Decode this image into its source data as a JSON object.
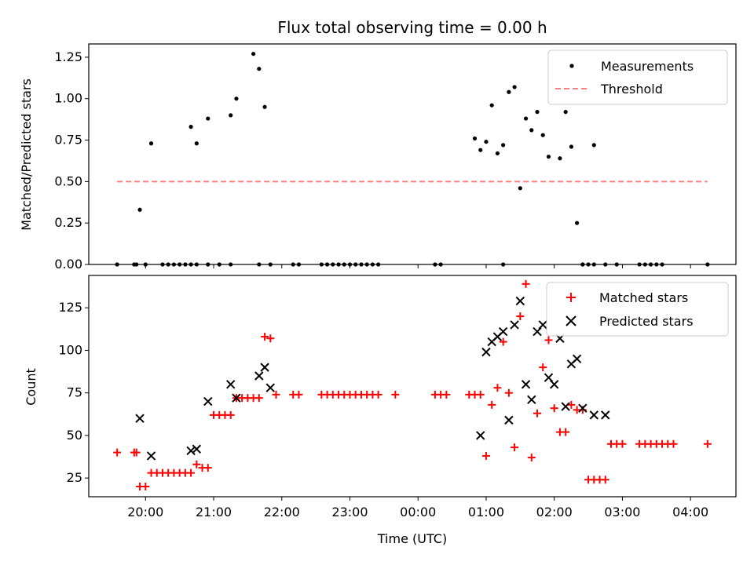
{
  "chart_data": [
    {
      "type": "scatter",
      "title": "Flux total observing time = 0.00 h",
      "xlabel": "",
      "ylabel": "Matched/Predicted stars",
      "xlim": [
        "19:10",
        "04:40"
      ],
      "ylim": [
        0,
        1.33
      ],
      "yticks": [
        "0.00",
        "0.25",
        "0.50",
        "0.75",
        "1.00",
        "1.25"
      ],
      "grid": false,
      "legend_position": "top-right",
      "series": [
        {
          "name": "Measurements",
          "marker": "dot",
          "color": "#000000",
          "x": [
            "19:35",
            "19:50",
            "19:52",
            "20:00",
            "20:15",
            "20:20",
            "20:25",
            "20:30",
            "20:35",
            "20:40",
            "20:45",
            "20:55",
            "21:05",
            "21:15",
            "21:40",
            "21:50",
            "22:10",
            "22:15",
            "22:35",
            "22:40",
            "22:45",
            "22:50",
            "22:55",
            "23:00",
            "23:05",
            "23:10",
            "23:15",
            "23:20",
            "23:25",
            "00:15",
            "00:20",
            "01:15",
            "02:25",
            "02:30",
            "02:35",
            "02:45",
            "02:55",
            "03:15",
            "03:20",
            "03:25",
            "03:30",
            "03:35",
            "04:15",
            "19:55",
            "20:05",
            "20:40",
            "20:45",
            "20:55",
            "21:15",
            "21:20",
            "21:35",
            "21:40",
            "21:45",
            "00:50",
            "00:55",
            "01:00",
            "01:05",
            "01:10",
            "01:15",
            "01:20",
            "01:25",
            "01:30",
            "01:35",
            "01:40",
            "01:45",
            "01:50",
            "01:55",
            "02:05",
            "02:10",
            "02:15",
            "02:20",
            "02:25",
            "02:35"
          ],
          "y": [
            0,
            0,
            0,
            0,
            0,
            0,
            0,
            0,
            0,
            0,
            0,
            0,
            0,
            0,
            0,
            0,
            0,
            0,
            0,
            0,
            0,
            0,
            0,
            0,
            0,
            0,
            0,
            0,
            0,
            0,
            0,
            0,
            0,
            0,
            0,
            0,
            0,
            0,
            0,
            0,
            0,
            0,
            0,
            0.33,
            0.73,
            0.83,
            0.73,
            0.88,
            0.9,
            1.0,
            1.27,
            1.18,
            0.95,
            0.76,
            0.69,
            0.74,
            0.96,
            0.67,
            0.72,
            1.04,
            1.07,
            0.46,
            0.88,
            0.81,
            0.92,
            0.78,
            0.65,
            0.64,
            0.92,
            0.71,
            0.25,
            0,
            0.72
          ]
        },
        {
          "name": "Threshold",
          "marker": "dashed-line",
          "color": "#ff8080",
          "x": [
            "19:35",
            "04:15"
          ],
          "y": [
            0.5,
            0.5
          ]
        }
      ]
    },
    {
      "type": "scatter",
      "title": "",
      "xlabel": "Time (UTC)",
      "ylabel": "Count",
      "xlim": [
        "19:10",
        "04:40"
      ],
      "xticks": [
        "20:00",
        "21:00",
        "22:00",
        "23:00",
        "00:00",
        "01:00",
        "02:00",
        "03:00",
        "04:00"
      ],
      "ylim": [
        14,
        144
      ],
      "yticks": [
        "25",
        "50",
        "75",
        "100",
        "125"
      ],
      "grid": false,
      "legend_position": "top-right",
      "series": [
        {
          "name": "Matched stars",
          "marker": "plus",
          "color": "#ff0000",
          "x": [
            "19:35",
            "19:50",
            "19:52",
            "19:55",
            "20:00",
            "20:05",
            "20:10",
            "20:15",
            "20:20",
            "20:25",
            "20:30",
            "20:35",
            "20:40",
            "20:45",
            "20:50",
            "20:55",
            "21:00",
            "21:05",
            "21:10",
            "21:15",
            "21:20",
            "21:25",
            "21:30",
            "21:35",
            "21:40",
            "21:45",
            "21:50",
            "21:55",
            "22:10",
            "22:15",
            "22:35",
            "22:40",
            "22:45",
            "22:50",
            "22:55",
            "23:00",
            "23:05",
            "23:10",
            "23:15",
            "23:20",
            "23:25",
            "23:40",
            "00:15",
            "00:20",
            "00:25",
            "00:45",
            "00:50",
            "00:55",
            "01:00",
            "01:05",
            "01:10",
            "01:15",
            "01:20",
            "01:25",
            "01:30",
            "01:35",
            "01:40",
            "01:45",
            "01:50",
            "01:55",
            "02:00",
            "02:05",
            "02:10",
            "02:15",
            "02:20",
            "02:25",
            "02:30",
            "02:35",
            "02:40",
            "02:45",
            "02:50",
            "02:55",
            "03:00",
            "03:15",
            "03:20",
            "03:25",
            "03:30",
            "03:35",
            "03:40",
            "03:45",
            "04:15"
          ],
          "y": [
            40,
            40,
            40,
            20,
            20,
            28,
            28,
            28,
            28,
            28,
            28,
            28,
            28,
            33,
            31,
            31,
            62,
            62,
            62,
            62,
            72,
            72,
            72,
            72,
            72,
            108,
            107,
            74,
            74,
            74,
            74,
            74,
            74,
            74,
            74,
            74,
            74,
            74,
            74,
            74,
            74,
            74,
            74,
            74,
            74,
            74,
            74,
            74,
            38,
            68,
            78,
            105,
            75,
            43,
            120,
            139,
            37,
            63,
            90,
            106,
            66,
            52,
            52,
            68,
            65,
            65,
            24,
            24,
            24,
            24,
            45,
            45,
            45,
            45,
            45,
            45,
            45,
            45,
            45,
            45,
            45
          ]
        },
        {
          "name": "Predicted stars",
          "marker": "x",
          "color": "#000000",
          "x": [
            "19:55",
            "20:05",
            "20:40",
            "20:45",
            "20:55",
            "21:15",
            "21:20",
            "21:40",
            "21:45",
            "21:50",
            "00:55",
            "01:00",
            "01:05",
            "01:10",
            "01:15",
            "01:20",
            "01:25",
            "01:30",
            "01:35",
            "01:40",
            "01:45",
            "01:50",
            "01:55",
            "02:00",
            "02:05",
            "02:10",
            "02:15",
            "02:20",
            "02:25",
            "02:35",
            "02:45"
          ],
          "y": [
            60,
            38,
            41,
            42,
            70,
            80,
            72,
            85,
            90,
            78,
            50,
            99,
            105,
            108,
            111,
            59,
            115,
            129,
            80,
            71,
            111,
            115,
            84,
            80,
            107,
            67,
            92,
            95,
            66,
            62,
            62
          ]
        }
      ]
    }
  ]
}
